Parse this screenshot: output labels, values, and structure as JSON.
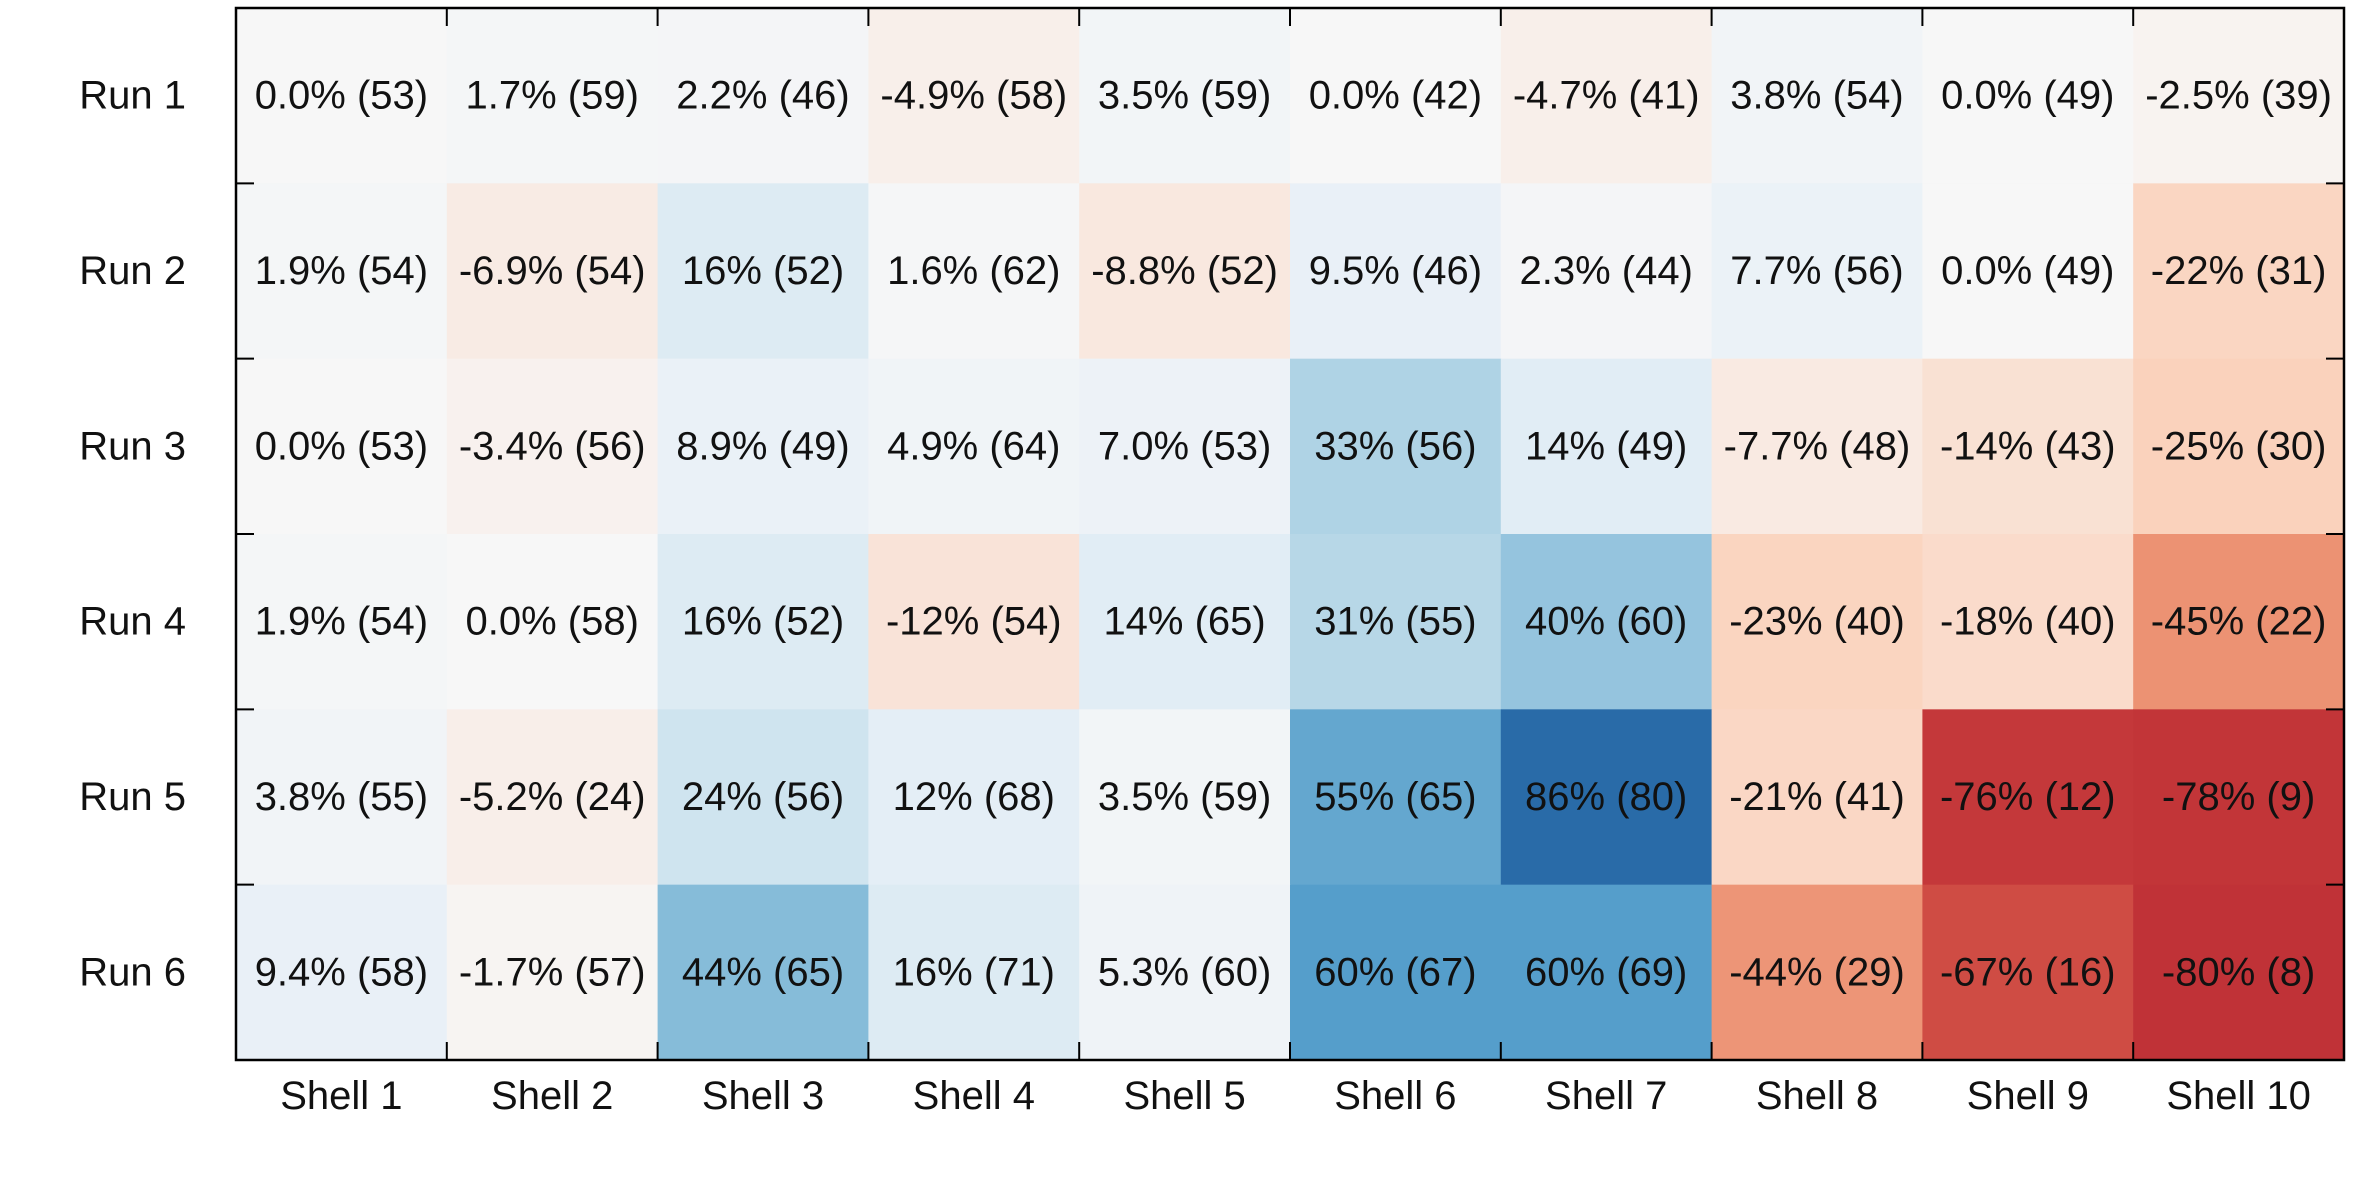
{
  "chart_data": {
    "type": "heatmap",
    "title": "",
    "xlabel": "",
    "ylabel": "",
    "x_categories": [
      "Shell 1",
      "Shell 2",
      "Shell 3",
      "Shell 4",
      "Shell 5",
      "Shell 6",
      "Shell 7",
      "Shell 8",
      "Shell 9",
      "Shell 10"
    ],
    "y_categories": [
      "Run 1",
      "Run 2",
      "Run 3",
      "Run 4",
      "Run 5",
      "Run 6"
    ],
    "values": [
      [
        0.0,
        1.7,
        2.2,
        -4.9,
        3.5,
        0.0,
        -4.7,
        3.8,
        0.0,
        -2.5
      ],
      [
        1.9,
        -6.9,
        16,
        1.6,
        -8.8,
        9.5,
        2.3,
        7.7,
        0.0,
        -22
      ],
      [
        0.0,
        -3.4,
        8.9,
        4.9,
        7.0,
        33,
        14,
        -7.7,
        -14,
        -25
      ],
      [
        1.9,
        0.0,
        16,
        -12,
        14,
        31,
        40,
        -23,
        -18,
        -45
      ],
      [
        3.8,
        -5.2,
        24,
        12,
        3.5,
        55,
        86,
        -21,
        -76,
        -78
      ],
      [
        9.4,
        -1.7,
        44,
        16,
        5.3,
        60,
        60,
        -44,
        -67,
        -80
      ]
    ],
    "counts": [
      [
        53,
        59,
        46,
        58,
        59,
        42,
        41,
        54,
        49,
        39
      ],
      [
        54,
        54,
        52,
        62,
        52,
        46,
        44,
        56,
        49,
        31
      ],
      [
        53,
        56,
        49,
        64,
        53,
        56,
        49,
        48,
        43,
        30
      ],
      [
        54,
        58,
        52,
        54,
        65,
        55,
        60,
        40,
        40,
        22
      ],
      [
        55,
        24,
        56,
        68,
        59,
        65,
        80,
        41,
        12,
        9
      ],
      [
        58,
        57,
        65,
        71,
        60,
        67,
        69,
        29,
        16,
        8
      ]
    ],
    "labels": [
      [
        "0.0% (53)",
        "1.7% (59)",
        "2.2% (46)",
        "-4.9% (58)",
        "3.5% (59)",
        "0.0% (42)",
        "-4.7% (41)",
        "3.8% (54)",
        "0.0% (49)",
        "-2.5% (39)"
      ],
      [
        "1.9% (54)",
        "-6.9% (54)",
        "16% (52)",
        "1.6% (62)",
        "-8.8% (52)",
        "9.5% (46)",
        "2.3% (44)",
        "7.7% (56)",
        "0.0% (49)",
        "-22% (31)"
      ],
      [
        "0.0% (53)",
        "-3.4% (56)",
        "8.9% (49)",
        "4.9% (64)",
        "7.0% (53)",
        "33% (56)",
        "14% (49)",
        "-7.7% (48)",
        "-14% (43)",
        "-25% (30)"
      ],
      [
        "1.9% (54)",
        "0.0% (58)",
        "16% (52)",
        "-12% (54)",
        "14% (65)",
        "31% (55)",
        "40% (60)",
        "-23% (40)",
        "-18% (40)",
        "-45% (22)"
      ],
      [
        "3.8% (55)",
        "-5.2% (24)",
        "24% (56)",
        "12% (68)",
        "3.5% (59)",
        "55% (65)",
        "86% (80)",
        "-21% (41)",
        "-76% (12)",
        "-78% (9)"
      ],
      [
        "9.4% (58)",
        "-1.7% (57)",
        "44% (65)",
        "16% (71)",
        "5.3% (60)",
        "60% (67)",
        "60% (69)",
        "-44% (29)",
        "-67% (16)",
        "-80% (8)"
      ]
    ],
    "colorscale": {
      "min": -100,
      "max": 100,
      "negative_color": "#b2182b",
      "neutral_color": "#f7f7f7",
      "positive_color": "#2166ac"
    },
    "grid": false,
    "legend": "none"
  }
}
